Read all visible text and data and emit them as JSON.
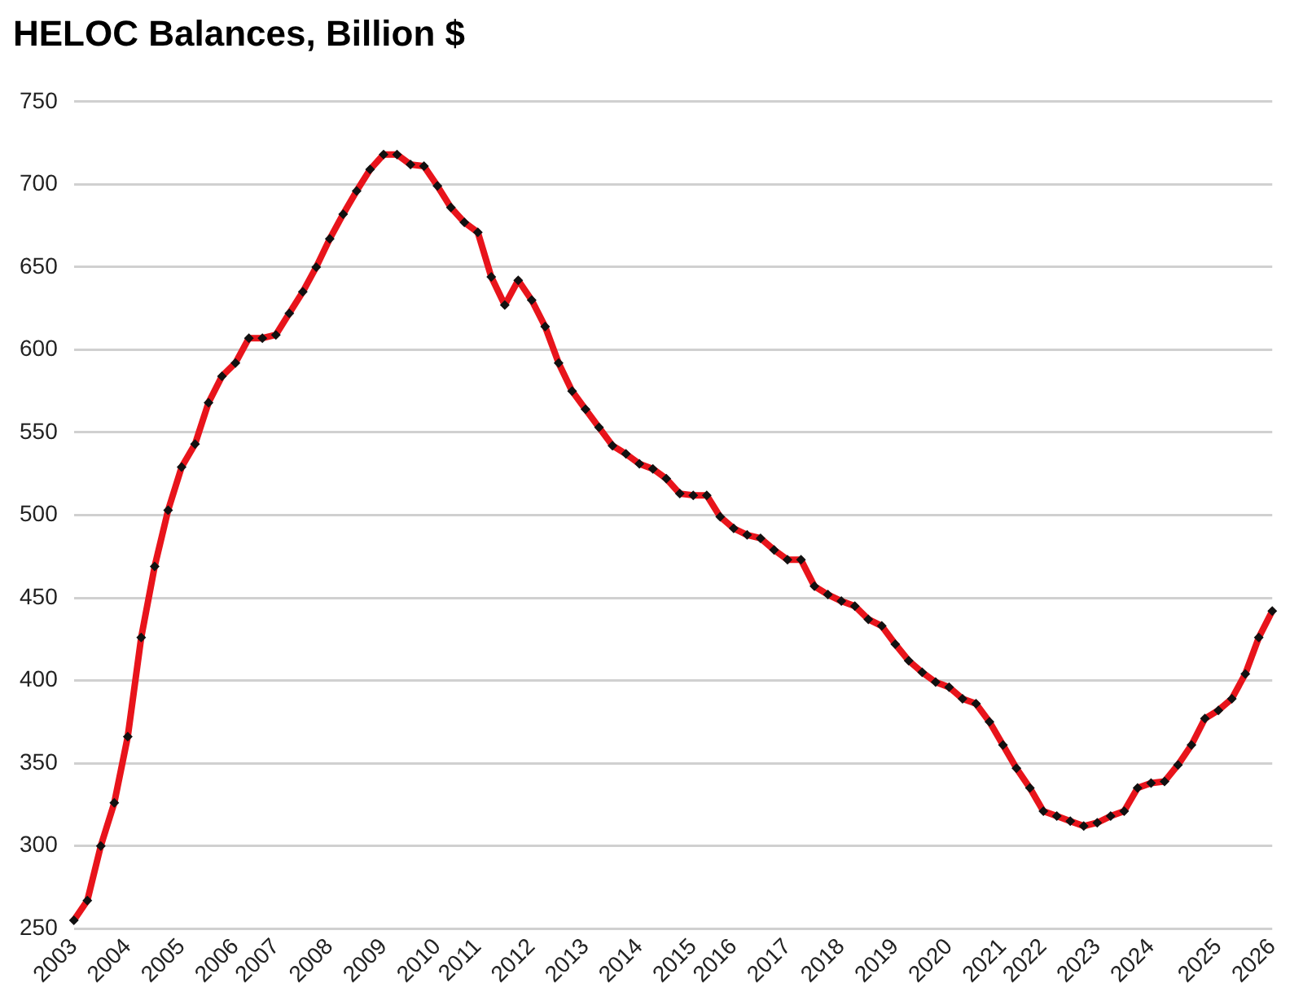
{
  "chart_data": {
    "type": "line",
    "title": "HELOC Balances, Billion $",
    "categories": [
      "2003",
      null,
      null,
      null,
      "2004",
      null,
      null,
      null,
      "2005",
      null,
      null,
      null,
      "2006",
      null,
      null,
      "2007",
      null,
      null,
      null,
      "2008",
      null,
      null,
      null,
      "2009",
      null,
      null,
      null,
      "2010",
      null,
      null,
      "2011",
      null,
      null,
      null,
      "2012",
      null,
      null,
      null,
      "2013",
      null,
      null,
      null,
      "2014",
      null,
      null,
      null,
      "2015",
      null,
      null,
      "2016",
      null,
      null,
      null,
      "2017",
      null,
      null,
      null,
      "2018",
      null,
      null,
      null,
      "2019",
      null,
      null,
      null,
      "2020",
      null,
      null,
      null,
      "2021",
      null,
      null,
      "2022",
      null,
      null,
      null,
      "2023",
      null,
      null,
      null,
      "2024",
      null,
      null,
      null,
      null,
      "2025",
      null,
      null,
      null,
      "2026"
    ],
    "series": [
      {
        "color": "#e8141b",
        "values": [
          255,
          267,
          300,
          326,
          366,
          426,
          469,
          503,
          529,
          543,
          568,
          584,
          592,
          607,
          607,
          609,
          622,
          635,
          650,
          667,
          682,
          696,
          709,
          718,
          718,
          712,
          711,
          699,
          686,
          677,
          671,
          644,
          627,
          642,
          630,
          614,
          592,
          575,
          564,
          553,
          542,
          537,
          531,
          528,
          522,
          513,
          512,
          512,
          499,
          492,
          488,
          486,
          479,
          473,
          473,
          457,
          452,
          448,
          445,
          437,
          433,
          422,
          412,
          405,
          399,
          396,
          389,
          386,
          375,
          361,
          347,
          335,
          321,
          318,
          315,
          312,
          314,
          318,
          321,
          335,
          338,
          339,
          349,
          361,
          377,
          382,
          389,
          404,
          426,
          442
        ]
      }
    ],
    "ylim": [
      250,
      750
    ],
    "yticks": [
      250,
      300,
      350,
      400,
      450,
      500,
      550,
      600,
      650,
      700,
      750
    ],
    "grid": "y",
    "legend": false,
    "marker": "diamond",
    "line_style": "solid"
  }
}
